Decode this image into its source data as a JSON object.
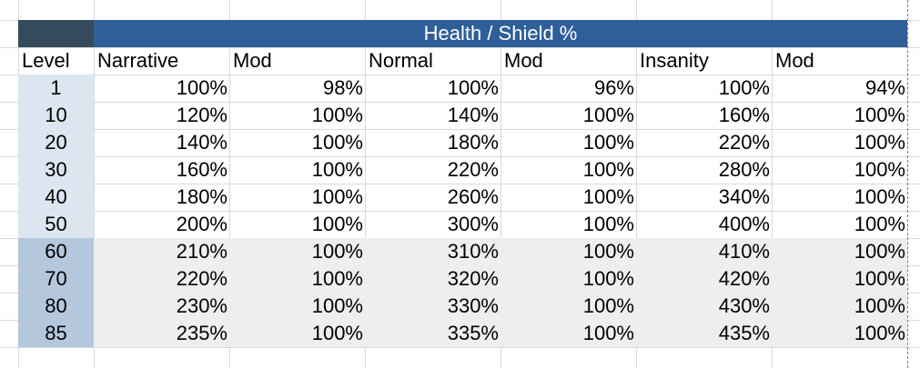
{
  "title": "Health / Shield %",
  "columns": [
    "Level",
    "Narrative",
    "Mod",
    "Normal",
    "Mod",
    "Insanity",
    "Mod"
  ],
  "rows": [
    [
      "1",
      "100%",
      "98%",
      "100%",
      "96%",
      "100%",
      "94%"
    ],
    [
      "10",
      "120%",
      "100%",
      "140%",
      "100%",
      "160%",
      "100%"
    ],
    [
      "20",
      "140%",
      "100%",
      "180%",
      "100%",
      "220%",
      "100%"
    ],
    [
      "30",
      "160%",
      "100%",
      "220%",
      "100%",
      "280%",
      "100%"
    ],
    [
      "40",
      "180%",
      "100%",
      "260%",
      "100%",
      "340%",
      "100%"
    ],
    [
      "50",
      "200%",
      "100%",
      "300%",
      "100%",
      "400%",
      "100%"
    ],
    [
      "60",
      "210%",
      "100%",
      "310%",
      "100%",
      "410%",
      "100%"
    ],
    [
      "70",
      "220%",
      "100%",
      "320%",
      "100%",
      "420%",
      "100%"
    ],
    [
      "80",
      "230%",
      "100%",
      "330%",
      "100%",
      "430%",
      "100%"
    ],
    [
      "85",
      "235%",
      "100%",
      "335%",
      "100%",
      "435%",
      "100%"
    ]
  ],
  "colors": {
    "header_band": "#2e5f98",
    "header_corner": "#354a5a",
    "level_light": "#dce6f0",
    "level_dark": "#b4c7dc",
    "row_shade": "#eeeeee"
  }
}
